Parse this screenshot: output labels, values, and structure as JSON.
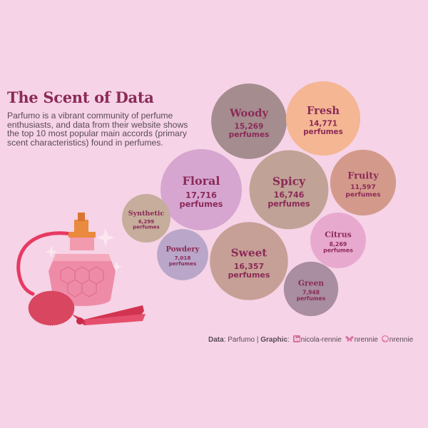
{
  "title": "The Scent of Data",
  "subtitle": "Parfumo is a vibrant community of perfume enthusiasts, and data from their website shows the top 10 most popular main accords (primary scent characteristics) found in perfumes.",
  "caption": {
    "data_label": "Data",
    "data_value": "Parfumo",
    "separator": "|",
    "graphic_label": "Graphic",
    "linkedin": "nicola-rennie",
    "bluesky": "nrennie",
    "github": "nrennie"
  },
  "icons": [
    "linkedin-icon",
    "butterfly-icon",
    "github-icon",
    "perfume-bottle-icon",
    "sparkle-icon"
  ],
  "chart_data": {
    "type": "bubble",
    "unit": "perfumes",
    "categories": [
      "Floral",
      "Spicy",
      "Sweet",
      "Woody",
      "Fresh",
      "Fruity",
      "Citrus",
      "Green",
      "Powdery",
      "Synthetic"
    ],
    "values": [
      17716,
      16746,
      16357,
      15269,
      14771,
      11597,
      8269,
      7948,
      7018,
      6299
    ],
    "labels": [
      "17,716",
      "16,746",
      "16,357",
      "15,269",
      "14,771",
      "11,597",
      "8,269",
      "7,948",
      "7,018",
      "6,299"
    ],
    "colors": [
      "#d6a6d1",
      "#c1a296",
      "#c6a096",
      "#a58c8f",
      "#f4b693",
      "#d39a8c",
      "#e8a9cf",
      "#a98da1",
      "#b9a6c8",
      "#c6ad9c"
    ]
  }
}
